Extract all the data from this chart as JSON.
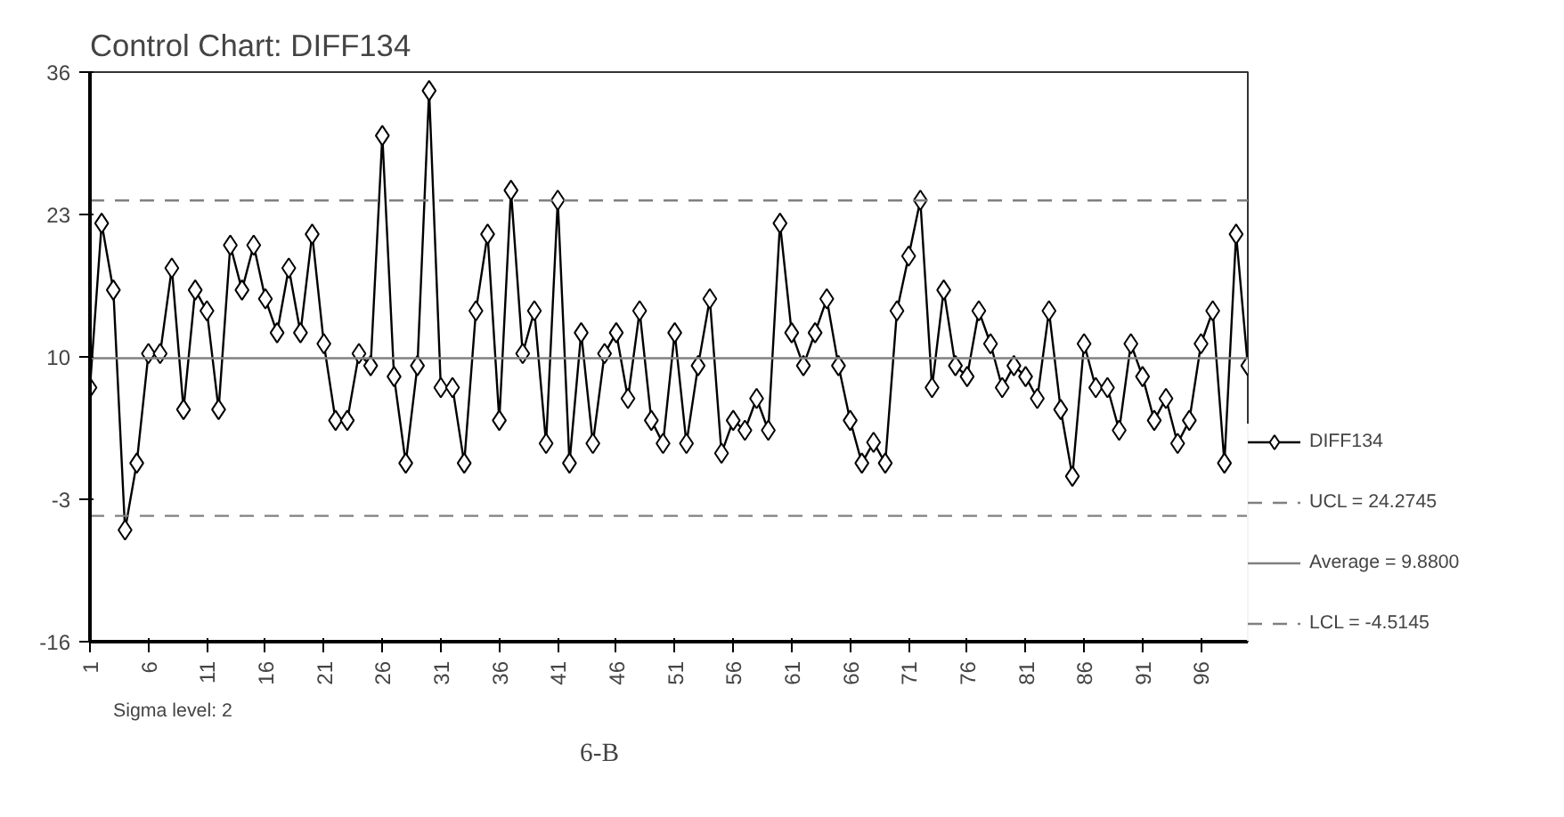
{
  "chart_data": {
    "type": "line",
    "title": "Control Chart: DIFF134",
    "x": [
      1,
      2,
      3,
      4,
      5,
      6,
      7,
      8,
      9,
      10,
      11,
      12,
      13,
      14,
      15,
      16,
      17,
      18,
      19,
      20,
      21,
      22,
      23,
      24,
      25,
      26,
      27,
      28,
      29,
      30,
      31,
      32,
      33,
      34,
      35,
      36,
      37,
      38,
      39,
      40,
      41,
      42,
      43,
      44,
      45,
      46,
      47,
      48,
      49,
      50,
      51,
      52,
      53,
      54,
      55,
      56,
      57,
      58,
      59,
      60,
      61,
      62,
      63,
      64,
      65,
      66,
      67,
      68,
      69,
      70,
      71,
      72,
      73,
      74,
      75,
      76,
      77,
      78,
      79,
      80,
      81,
      82,
      83,
      84,
      85,
      86,
      87,
      88,
      89,
      90,
      91,
      92,
      93,
      94,
      95,
      96,
      97,
      98,
      99,
      100
    ],
    "series": [
      {
        "name": "DIFF134",
        "color": "#000000",
        "values": [
          7.2,
          22.2,
          16.1,
          -5.8,
          0.3,
          10.3,
          10.3,
          18.1,
          5.2,
          16.1,
          14.2,
          5.2,
          20.2,
          16.1,
          20.2,
          15.3,
          12.2,
          18.1,
          12.2,
          21.2,
          11.2,
          4.2,
          4.2,
          10.3,
          9.2,
          30.2,
          8.2,
          0.3,
          9.2,
          34.3,
          7.2,
          7.2,
          0.3,
          14.2,
          21.2,
          4.2,
          25.2,
          10.3,
          14.2,
          2.1,
          24.3,
          0.3,
          12.2,
          2.1,
          10.3,
          12.2,
          6.2,
          14.2,
          4.2,
          2.1,
          12.2,
          2.1,
          9.2,
          15.3,
          1.2,
          4.2,
          3.3,
          6.2,
          3.3,
          22.2,
          12.2,
          9.2,
          12.2,
          15.3,
          9.2,
          4.2,
          0.3,
          2.2,
          0.3,
          14.2,
          19.2,
          24.3,
          7.2,
          16.1,
          9.2,
          8.2,
          14.2,
          11.2,
          7.2,
          9.2,
          8.2,
          6.2,
          14.2,
          5.2,
          -0.9,
          11.2,
          7.2,
          7.2,
          3.3,
          11.2,
          8.2,
          4.2,
          6.2,
          2.1,
          4.2,
          11.2,
          14.2,
          0.3,
          21.2,
          9.2
        ]
      }
    ],
    "marker": "diamond",
    "ref_lines": [
      {
        "axis": "y",
        "value": 24.2745,
        "label": "UCL = 24.2745",
        "color": "#808080",
        "line_style": "dashed"
      },
      {
        "axis": "y",
        "value": 9.88,
        "label": "Average = 9.8800",
        "color": "#808080",
        "line_style": "solid"
      },
      {
        "axis": "y",
        "value": -4.5145,
        "label": "LCL = -4.5145",
        "color": "#808080",
        "line_style": "dashed"
      }
    ],
    "xlim": [
      1,
      100
    ],
    "xticks": [
      1,
      6,
      11,
      16,
      21,
      26,
      31,
      36,
      41,
      46,
      51,
      56,
      61,
      66,
      71,
      76,
      81,
      86,
      91,
      96
    ],
    "ylim": [
      -16,
      36
    ],
    "yticks": [
      36,
      23,
      10,
      -3,
      -16
    ],
    "grid": false,
    "legend": "right",
    "annotations": [
      "Sigma level: 2",
      "6-B"
    ]
  }
}
